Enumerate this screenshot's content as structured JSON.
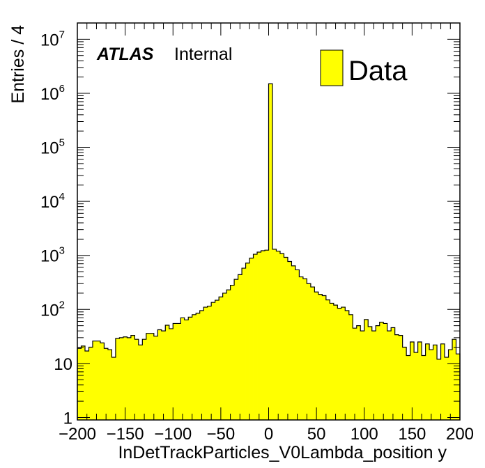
{
  "label": {
    "experiment": "ATLAS",
    "status": "Internal"
  },
  "chart_data": {
    "type": "histogram",
    "xlabel": "InDetTrackParticles_V0Lambda_position y",
    "ylabel": "Entries / 4",
    "xlim": [
      -200,
      200
    ],
    "ylim": [
      0.9,
      20000000
    ],
    "yscale": "log",
    "bin_width": 4,
    "fill_color": "#ffff00",
    "line_color": "#000000",
    "x_ticks": [
      -200,
      -150,
      -100,
      -50,
      0,
      50,
      100,
      150,
      200
    ],
    "y_ticks": [
      {
        "value": 1,
        "base": "1",
        "exp": ""
      },
      {
        "value": 10,
        "base": "10",
        "exp": ""
      },
      {
        "value": 100,
        "base": "10",
        "exp": "2"
      },
      {
        "value": 1000,
        "base": "10",
        "exp": "3"
      },
      {
        "value": 10000,
        "base": "10",
        "exp": "4"
      },
      {
        "value": 100000,
        "base": "10",
        "exp": "5"
      },
      {
        "value": 1000000,
        "base": "10",
        "exp": "6"
      },
      {
        "value": 10000000,
        "base": "10",
        "exp": "7"
      }
    ],
    "legend": [
      {
        "name": "Data",
        "color": "#ffff00"
      }
    ],
    "legend_position": "top-right",
    "bin_low_edges": [
      -200,
      -196,
      -192,
      -188,
      -184,
      -180,
      -176,
      -172,
      -168,
      -164,
      -160,
      -156,
      -152,
      -148,
      -144,
      -140,
      -136,
      -132,
      -128,
      -124,
      -120,
      -116,
      -112,
      -108,
      -104,
      -100,
      -96,
      -92,
      -88,
      -84,
      -80,
      -76,
      -72,
      -68,
      -64,
      -60,
      -56,
      -52,
      -48,
      -44,
      -40,
      -36,
      -32,
      -28,
      -24,
      -20,
      -16,
      -12,
      -8,
      -4,
      0,
      4,
      8,
      12,
      16,
      20,
      24,
      28,
      32,
      36,
      40,
      44,
      48,
      52,
      56,
      60,
      64,
      68,
      72,
      76,
      80,
      84,
      88,
      92,
      96,
      100,
      104,
      108,
      112,
      116,
      120,
      124,
      128,
      132,
      136,
      140,
      144,
      148,
      152,
      156,
      160,
      164,
      168,
      172,
      176,
      180,
      184,
      188,
      192,
      196
    ],
    "counts": [
      19,
      21,
      17,
      20,
      26,
      26,
      24,
      19,
      18,
      13,
      29,
      30,
      31,
      30,
      33,
      28,
      22,
      28,
      36,
      36,
      32,
      42,
      40,
      51,
      44,
      55,
      55,
      70,
      64,
      72,
      80,
      85,
      95,
      110,
      115,
      135,
      148,
      170,
      200,
      230,
      280,
      360,
      440,
      580,
      720,
      890,
      1050,
      1150,
      1220,
      1250,
      1500000,
      1300,
      1200,
      1080,
      920,
      770,
      640,
      540,
      400,
      370,
      300,
      260,
      210,
      190,
      180,
      150,
      130,
      120,
      105,
      110,
      95,
      80,
      45,
      50,
      40,
      65,
      48,
      40,
      50,
      58,
      55,
      40,
      46,
      34,
      33,
      20,
      14,
      25,
      16,
      25,
      14,
      23,
      18,
      22,
      12,
      23,
      13,
      18,
      28,
      15
    ]
  }
}
